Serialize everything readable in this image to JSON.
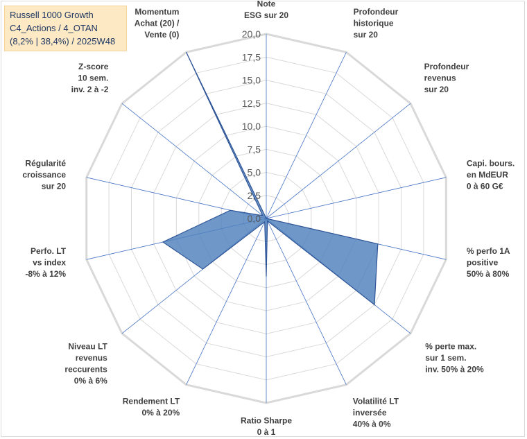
{
  "title_box": {
    "line1": "Russell 1000 Growth",
    "line2": "C4_Actions / 4_OTAN",
    "line3": "(8,2% | 38,4%) / 2025W48"
  },
  "chart_data": {
    "type": "radar",
    "title": "Russell 1000 Growth C4_Actions / 4_OTAN (8,2% | 38,4%) / 2025W48",
    "rmin": 0,
    "rmax": 20,
    "ticks": [
      "0,0",
      "2,5",
      "5,0",
      "7,5",
      "10,0",
      "12,5",
      "15,0",
      "17,5",
      "20,0"
    ],
    "axes": [
      [
        "Note",
        "ESG sur 20"
      ],
      [
        "Profondeur",
        "historique",
        "sur 20"
      ],
      [
        "Profondeur",
        "revenus",
        "sur 20"
      ],
      [
        "Capi. bours.",
        "en MdEUR",
        "0 à 60 G€"
      ],
      [
        "% perfo 1A",
        "positive",
        "50% à 80%"
      ],
      [
        "% perte max.",
        "sur 1 sem.",
        "inv. 50% à 20%"
      ],
      [
        "Volatilité LT",
        "inversée",
        "40% à 0%"
      ],
      [
        "Ratio Sharpe",
        "0 à 1"
      ],
      [
        "Rendement LT",
        "0% à 20%"
      ],
      [
        "Niveau LT",
        "revenus",
        "reccurents",
        "0% à 6%"
      ],
      [
        "Perfo. LT",
        "vs index",
        "-8% à 12%"
      ],
      [
        "Régularité",
        "croissance",
        "sur 20"
      ],
      [
        "Z-score",
        "10 sem.",
        "inv. 2 à -2"
      ],
      [
        "Momentum",
        "Achat (20) /",
        "Vente (0)"
      ]
    ],
    "series": [
      {
        "name": "Russell 1000 Growth",
        "color": "#4f81bd",
        "values": [
          0,
          0,
          0,
          0,
          12.4,
          15.0,
          0.3,
          6.3,
          0.4,
          8.8,
          11.5,
          4.0,
          0.5,
          20.0
        ]
      }
    ]
  }
}
